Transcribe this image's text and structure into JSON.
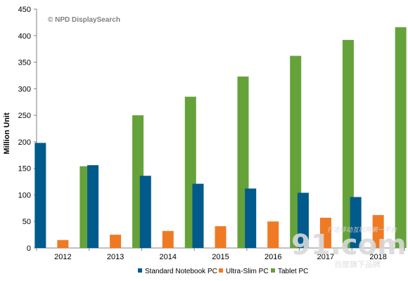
{
  "colors": {
    "standard": "#005a8c",
    "ultraslim": "#ef7a23",
    "tablet": "#66a23a",
    "gridline": "#c8c8c8",
    "axis": "#808080"
  },
  "chart_data": {
    "type": "bar",
    "title": "",
    "source_note": "© NPD DisplaySearch",
    "xlabel": "",
    "ylabel": "Million Unit",
    "ylim": [
      0,
      450
    ],
    "yticks": [
      0,
      50,
      100,
      150,
      200,
      250,
      300,
      350,
      400,
      450
    ],
    "grid": false,
    "legend_position": "bottom",
    "categories": [
      "2012",
      "2013",
      "2014",
      "2015",
      "2016",
      "2017",
      "2018"
    ],
    "series": [
      {
        "name": "Standard Notebook PC",
        "color": "#005a8c",
        "values": [
          198,
          156,
          136,
          121,
          112,
          104,
          96
        ]
      },
      {
        "name": "Ultra-Slim PC",
        "color": "#ef7a23",
        "values": [
          15,
          25,
          32,
          41,
          50,
          57,
          62
        ]
      },
      {
        "name": "Tablet PC",
        "color": "#66a23a",
        "values": [
          154,
          250,
          285,
          323,
          362,
          392,
          416
        ]
      }
    ]
  },
  "watermark": {
    "main": "91.com",
    "tagline": "打造移动互联网第一平台",
    "subline": "百度旗下品牌"
  }
}
